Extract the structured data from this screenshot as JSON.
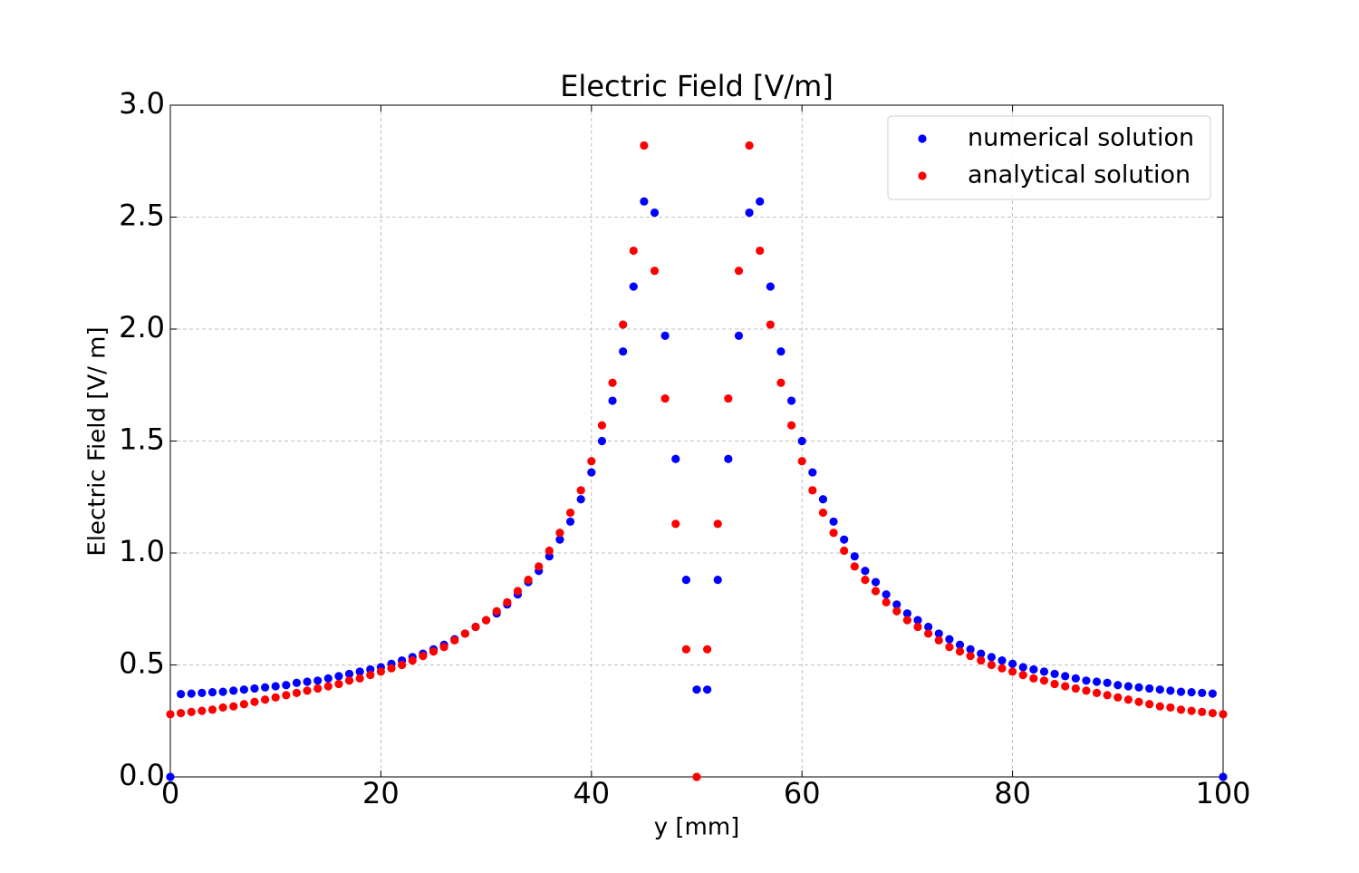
{
  "chart_data": {
    "type": "scatter",
    "title": "Electric Field [V/m]",
    "x_label": "y [mm]",
    "y_label": "Electric Field [V/ m]",
    "x": [
      0,
      1,
      2,
      3,
      4,
      5,
      6,
      7,
      8,
      9,
      10,
      11,
      12,
      13,
      14,
      15,
      16,
      17,
      18,
      19,
      20,
      21,
      22,
      23,
      24,
      25,
      26,
      27,
      28,
      29,
      30,
      31,
      32,
      33,
      34,
      35,
      36,
      37,
      38,
      39,
      40,
      41,
      42,
      43,
      44,
      45,
      46,
      47,
      48,
      49,
      50,
      51,
      52,
      53,
      54,
      55,
      56,
      57,
      58,
      59,
      60,
      61,
      62,
      63,
      64,
      65,
      66,
      67,
      68,
      69,
      70,
      71,
      72,
      73,
      74,
      75,
      76,
      77,
      78,
      79,
      80,
      81,
      82,
      83,
      84,
      85,
      86,
      87,
      88,
      89,
      90,
      91,
      92,
      93,
      94,
      95,
      96,
      97,
      98,
      99,
      100
    ],
    "series": [
      {
        "name": "numerical solution",
        "color": "#0000ff",
        "values": [
          0,
          0.37,
          0.372,
          0.375,
          0.378,
          0.38,
          0.385,
          0.39,
          0.395,
          0.4,
          0.405,
          0.41,
          0.42,
          0.425,
          0.43,
          0.44,
          0.45,
          0.46,
          0.47,
          0.48,
          0.49,
          0.505,
          0.52,
          0.535,
          0.55,
          0.57,
          0.59,
          0.615,
          0.64,
          0.67,
          0.7,
          0.73,
          0.77,
          0.815,
          0.87,
          0.92,
          0.985,
          1.06,
          1.14,
          1.24,
          1.36,
          1.5,
          1.68,
          1.9,
          2.19,
          2.57,
          2.52,
          1.97,
          1.42,
          0.88,
          0.39,
          0.39,
          0.88,
          1.42,
          1.97,
          2.52,
          2.57,
          2.19,
          1.9,
          1.68,
          1.5,
          1.36,
          1.24,
          1.14,
          1.06,
          0.985,
          0.92,
          0.87,
          0.815,
          0.77,
          0.73,
          0.7,
          0.67,
          0.64,
          0.615,
          0.59,
          0.57,
          0.55,
          0.535,
          0.52,
          0.505,
          0.49,
          0.48,
          0.47,
          0.46,
          0.45,
          0.44,
          0.43,
          0.425,
          0.42,
          0.41,
          0.405,
          0.4,
          0.395,
          0.39,
          0.385,
          0.38,
          0.378,
          0.375,
          0.372,
          0
        ]
      },
      {
        "name": "analytical solution",
        "color": "#ff0000",
        "values": [
          0.28,
          0.285,
          0.29,
          0.295,
          0.3,
          0.31,
          0.315,
          0.325,
          0.335,
          0.345,
          0.355,
          0.365,
          0.375,
          0.385,
          0.395,
          0.405,
          0.415,
          0.43,
          0.44,
          0.455,
          0.47,
          0.485,
          0.5,
          0.52,
          0.54,
          0.56,
          0.58,
          0.61,
          0.64,
          0.67,
          0.7,
          0.74,
          0.78,
          0.83,
          0.88,
          0.94,
          1.01,
          1.09,
          1.18,
          1.28,
          1.41,
          1.57,
          1.76,
          2.02,
          2.35,
          2.82,
          2.26,
          1.69,
          1.13,
          0.57,
          0,
          0.57,
          1.13,
          1.69,
          2.26,
          2.82,
          2.35,
          2.02,
          1.76,
          1.57,
          1.41,
          1.28,
          1.18,
          1.09,
          1.01,
          0.94,
          0.88,
          0.83,
          0.78,
          0.74,
          0.7,
          0.67,
          0.64,
          0.61,
          0.58,
          0.56,
          0.54,
          0.52,
          0.5,
          0.485,
          0.47,
          0.455,
          0.44,
          0.43,
          0.415,
          0.405,
          0.395,
          0.385,
          0.375,
          0.365,
          0.355,
          0.345,
          0.335,
          0.325,
          0.315,
          0.31,
          0.3,
          0.295,
          0.29,
          0.285,
          0.28
        ]
      }
    ],
    "xlim": [
      0,
      100
    ],
    "xticks": [
      0,
      20,
      40,
      60,
      80,
      100
    ],
    "ylim": [
      0,
      3
    ],
    "yticks": [
      {
        "value": 0,
        "label": "0.0"
      },
      0.5,
      {
        "value": 1,
        "label": "1.0"
      },
      1.5,
      {
        "value": 2,
        "label": "2.0"
      },
      2.5,
      {
        "value": 3,
        "label": "3.0"
      }
    ],
    "grid": true,
    "legend": "upper right"
  }
}
